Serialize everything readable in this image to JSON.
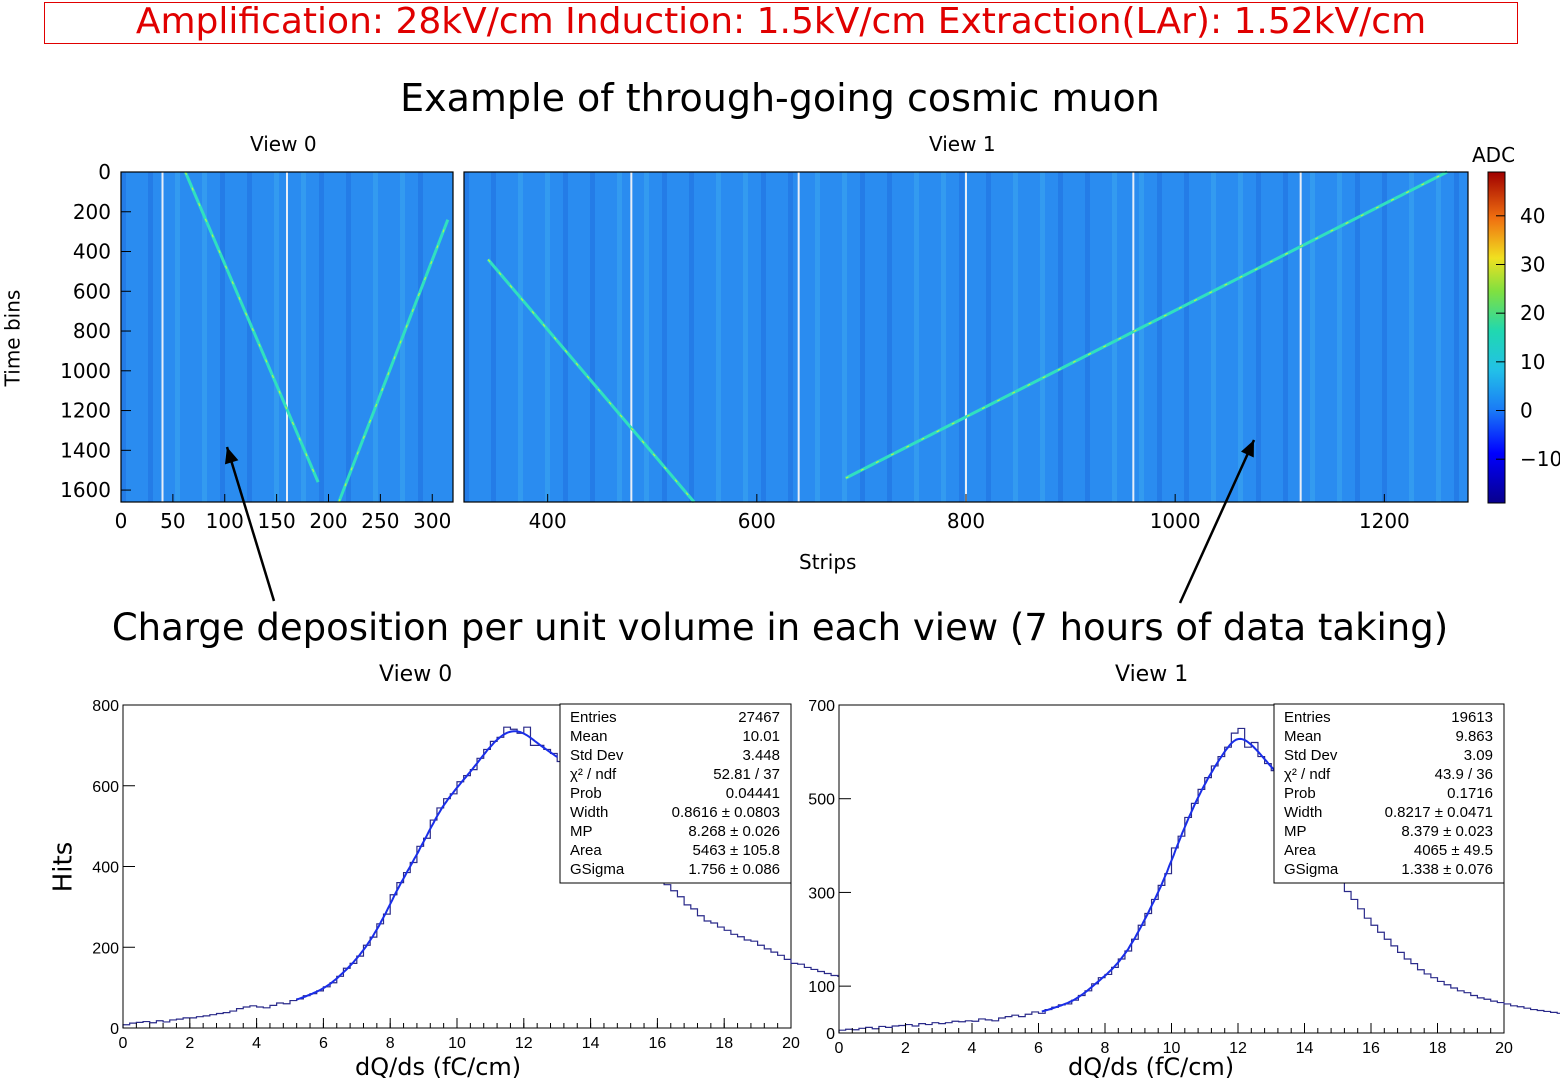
{
  "banner": "Amplification: 28kV/cm  Induction: 1.5kV/cm  Extraction(LAr): 1.52kV/cm",
  "main_title": "Example of through-going cosmic muon",
  "section_title": "Charge deposition per unit volume in each view (7 hours of data taking)",
  "colors": {
    "banner": "#e00000",
    "fit": "#1a2ee8",
    "hist": "#2a2a8a",
    "mp": "#e00000",
    "bg": "#2a8cf0"
  },
  "event_display": {
    "y_label": "Time bins",
    "x_label": "Strips",
    "colorbar_title": "ADC",
    "y_ticks": [
      "0",
      "200",
      "400",
      "600",
      "800",
      "1000",
      "1200",
      "1400",
      "1600"
    ],
    "colorbar_ticks": [
      "40",
      "30",
      "20",
      "10",
      "0",
      "−10"
    ],
    "panels": [
      {
        "title": "View 0",
        "x_ticks": [
          "0",
          "50",
          "100",
          "150",
          "200",
          "250",
          "300"
        ]
      },
      {
        "title": "View 1",
        "x_ticks": [
          "400",
          "600",
          "800",
          "1000",
          "1200"
        ]
      }
    ]
  },
  "chart_data": [
    {
      "type": "heatmap",
      "title": "View 0",
      "xlabel": "Strips",
      "ylabel": "Time bins",
      "xlim": [
        0,
        320
      ],
      "ylim": [
        1660,
        0
      ],
      "zlabel": "ADC",
      "zlim": [
        -19,
        49
      ],
      "dead_strips": [
        40,
        160
      ],
      "tracks": [
        {
          "x": [
            62,
            190
          ],
          "y": [
            0,
            1560
          ]
        },
        {
          "x": [
            210,
            315
          ],
          "y": [
            1660,
            240
          ]
        }
      ]
    },
    {
      "type": "heatmap",
      "title": "View 1",
      "xlabel": "Strips",
      "ylabel": "Time bins",
      "xlim": [
        320,
        1280
      ],
      "ylim": [
        1660,
        0
      ],
      "zlabel": "ADC",
      "zlim": [
        -19,
        49
      ],
      "dead_strips": [
        480,
        640,
        800,
        960,
        1120
      ],
      "tracks": [
        {
          "x": [
            343,
            540
          ],
          "y": [
            440,
            1660
          ]
        },
        {
          "x": [
            685,
            1260
          ],
          "y": [
            1540,
            0
          ]
        }
      ]
    },
    {
      "type": "bar",
      "title": "View 0",
      "xlabel": "dQ/ds (fC/cm)",
      "ylabel": "Hits",
      "xlim": [
        0,
        20
      ],
      "ylim": [
        0,
        800
      ],
      "x_ticks": [
        "0",
        "2",
        "4",
        "6",
        "8",
        "10",
        "12",
        "14",
        "16",
        "18",
        "20"
      ],
      "y_ticks": [
        "0",
        "200",
        "400",
        "600",
        "800"
      ],
      "bin_width": 0.2,
      "bin_start": 0,
      "values": [
        8,
        12,
        14,
        16,
        13,
        18,
        15,
        20,
        22,
        25,
        25,
        28,
        30,
        33,
        36,
        38,
        42,
        48,
        52,
        55,
        52,
        50,
        56,
        62,
        60,
        68,
        72,
        80,
        85,
        92,
        102,
        112,
        128,
        148,
        160,
        178,
        205,
        225,
        258,
        282,
        330,
        360,
        385,
        410,
        450,
        470,
        515,
        545,
        568,
        580,
        610,
        625,
        640,
        668,
        690,
        710,
        720,
        745,
        740,
        730,
        745,
        700,
        700,
        690,
        680,
        660,
        650,
        660,
        650,
        635,
        590,
        560,
        545,
        535,
        495,
        480,
        465,
        440,
        415,
        390,
        375,
        355,
        340,
        325,
        305,
        295,
        278,
        265,
        260,
        250,
        242,
        232,
        226,
        218,
        215,
        205,
        196,
        188,
        180,
        170,
        160,
        158,
        150,
        145,
        140,
        135,
        130,
        128,
        122,
        118,
        115,
        110,
        106,
        100,
        96,
        92,
        88,
        85,
        82,
        78,
        75,
        70,
        70,
        65,
        62,
        58,
        55,
        55,
        50,
        48,
        44,
        42,
        40,
        38,
        42,
        40,
        38,
        36,
        35,
        32,
        32,
        28,
        30,
        28,
        26,
        25,
        22,
        20,
        18,
        16
      ],
      "fit": {
        "name": "Landau-Gauss",
        "x": [
          5.2,
          13.0
        ]
      },
      "stats": [
        [
          "Entries",
          "27467"
        ],
        [
          "Mean",
          "10.01"
        ],
        [
          "Std Dev",
          "3.448"
        ],
        [
          "χ² / ndf",
          "52.81 / 37"
        ],
        [
          "Prob",
          "0.04441"
        ],
        [
          "Width",
          "0.8616 ± 0.0803"
        ],
        [
          "MP",
          "8.268 ± 0.026"
        ],
        [
          "Area",
          "5463 ± 105.8"
        ],
        [
          "GSigma",
          "1.756 ± 0.086"
        ]
      ]
    },
    {
      "type": "bar",
      "title": "View 1",
      "xlabel": "dQ/ds (fC/cm)",
      "ylabel": "Hits",
      "xlim": [
        0,
        20
      ],
      "ylim": [
        0,
        700
      ],
      "x_ticks": [
        "0",
        "2",
        "4",
        "6",
        "8",
        "10",
        "12",
        "14",
        "16",
        "18",
        "20"
      ],
      "y_ticks": [
        "0",
        "100",
        "300",
        "500",
        "700"
      ],
      "bin_width": 0.2,
      "bin_start": 0,
      "values": [
        6,
        8,
        7,
        10,
        12,
        9,
        14,
        12,
        15,
        16,
        18,
        15,
        20,
        18,
        22,
        20,
        22,
        25,
        24,
        26,
        25,
        30,
        28,
        26,
        32,
        35,
        38,
        35,
        40,
        45,
        42,
        50,
        55,
        60,
        62,
        70,
        80,
        90,
        105,
        118,
        125,
        140,
        158,
        175,
        200,
        230,
        255,
        285,
        315,
        340,
        395,
        420,
        460,
        490,
        520,
        545,
        570,
        590,
        610,
        640,
        650,
        610,
        620,
        590,
        575,
        560,
        545,
        530,
        500,
        480,
        440,
        420,
        400,
        375,
        350,
        325,
        302,
        285,
        265,
        245,
        230,
        215,
        200,
        186,
        172,
        158,
        148,
        135,
        126,
        118,
        110,
        103,
        96,
        90,
        86,
        80,
        75,
        72,
        68,
        65,
        62,
        58,
        56,
        53,
        50,
        48,
        46,
        44,
        42,
        40,
        38,
        36,
        35,
        33,
        32,
        31,
        30,
        29,
        28,
        27,
        26,
        25,
        24,
        23,
        22,
        21,
        20,
        20,
        19,
        18,
        17,
        17,
        16,
        15,
        15,
        14,
        14,
        13,
        13,
        12,
        12,
        11,
        11,
        10,
        10,
        10,
        9,
        9,
        8,
        8
      ],
      "fit": {
        "name": "Landau-Gauss",
        "x": [
          6.1,
          13.9
        ]
      },
      "stats": [
        [
          "Entries",
          "19613"
        ],
        [
          "Mean",
          "9.863"
        ],
        [
          "Std Dev",
          "3.09"
        ],
        [
          "χ² / ndf",
          "43.9 / 36"
        ],
        [
          "Prob",
          "0.1716"
        ],
        [
          "Width",
          "0.8217 ± 0.0471"
        ],
        [
          "MP",
          "8.379 ± 0.023"
        ],
        [
          "Area",
          "4065 ± 49.5"
        ],
        [
          "GSigma",
          "1.338 ± 0.076"
        ]
      ]
    }
  ]
}
